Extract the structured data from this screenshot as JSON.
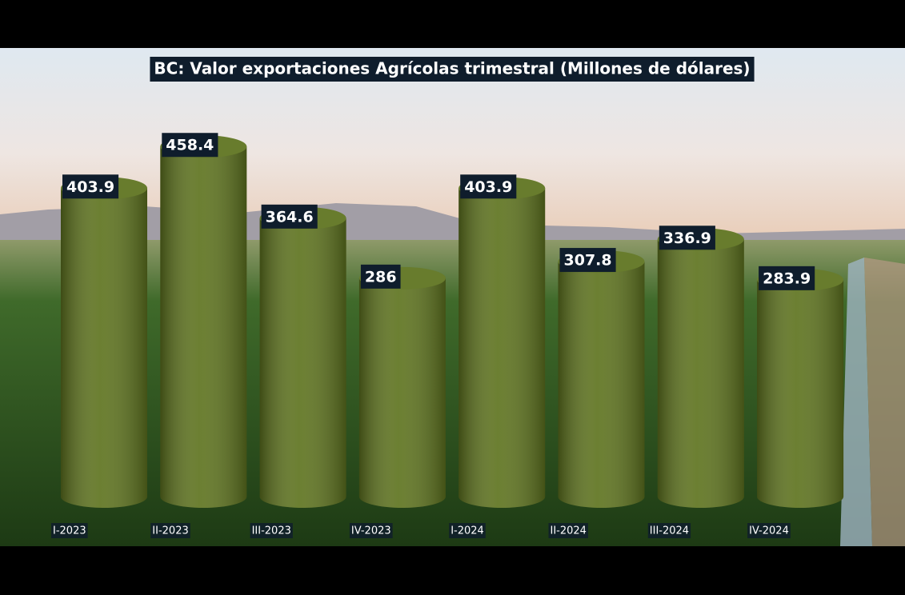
{
  "chart_data": {
    "type": "bar",
    "title": "BC: Valor exportaciones Agrícolas trimestral (Millones de dólares)",
    "categories": [
      "I-2023",
      "II-2023",
      "III-2023",
      "IV-2023",
      "I-2024",
      "II-2024",
      "III-2024",
      "IV-2024"
    ],
    "values": [
      403.9,
      458.4,
      364.6,
      286,
      403.9,
      307.8,
      336.9,
      283.9
    ],
    "color": "#5f7420"
  }
}
